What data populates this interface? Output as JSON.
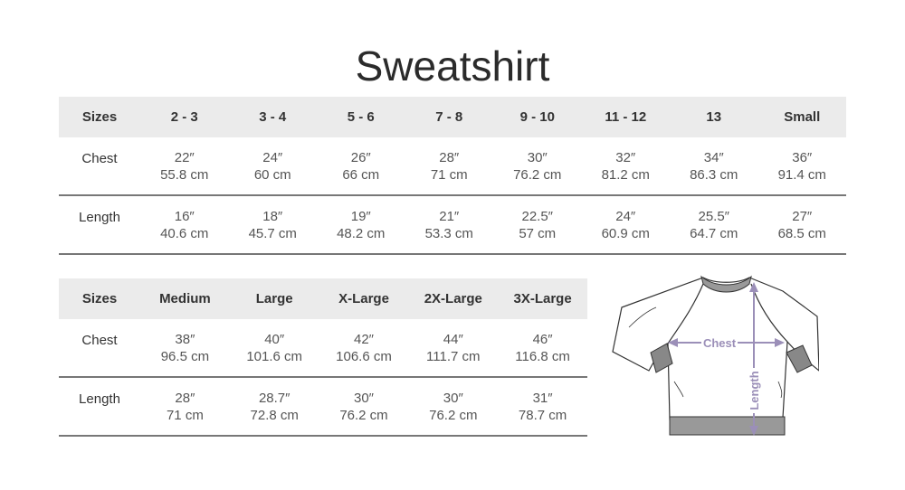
{
  "title": "Sweatshirt",
  "table1": {
    "headers": [
      "Sizes",
      "2 - 3",
      "3 - 4",
      "5 - 6",
      "7 - 8",
      "9 - 10",
      "11 - 12",
      "13",
      "Small"
    ],
    "rows": [
      {
        "label": "Chest",
        "cells": [
          [
            "22″",
            "55.8 cm"
          ],
          [
            "24″",
            "60 cm"
          ],
          [
            "26″",
            "66 cm"
          ],
          [
            "28″",
            "71 cm"
          ],
          [
            "30″",
            "76.2 cm"
          ],
          [
            "32″",
            "81.2 cm"
          ],
          [
            "34″",
            "86.3 cm"
          ],
          [
            "36″",
            "91.4 cm"
          ]
        ]
      },
      {
        "label": "Length",
        "cells": [
          [
            "16″",
            "40.6 cm"
          ],
          [
            "18″",
            "45.7 cm"
          ],
          [
            "19″",
            "48.2 cm"
          ],
          [
            "21″",
            "53.3 cm"
          ],
          [
            "22.5″",
            "57 cm"
          ],
          [
            "24″",
            "60.9 cm"
          ],
          [
            "25.5″",
            "64.7 cm"
          ],
          [
            "27″",
            "68.5 cm"
          ]
        ]
      }
    ]
  },
  "table2": {
    "headers": [
      "Sizes",
      "Medium",
      "Large",
      "X-Large",
      "2X-Large",
      "3X-Large"
    ],
    "rows": [
      {
        "label": "Chest",
        "cells": [
          [
            "38″",
            "96.5 cm"
          ],
          [
            "40″",
            "101.6 cm"
          ],
          [
            "42″",
            "106.6 cm"
          ],
          [
            "44″",
            "111.7 cm"
          ],
          [
            "46″",
            "116.8 cm"
          ]
        ]
      },
      {
        "label": "Length",
        "cells": [
          [
            "28″",
            "71 cm"
          ],
          [
            "28.7″",
            "72.8 cm"
          ],
          [
            "30″",
            "76.2 cm"
          ],
          [
            "30″",
            "76.2 cm"
          ],
          [
            "31″",
            "78.7 cm"
          ]
        ]
      }
    ]
  },
  "illustration": {
    "chest_label": "Chest",
    "length_label": "Length",
    "measure_color": "#9b8fb8"
  }
}
